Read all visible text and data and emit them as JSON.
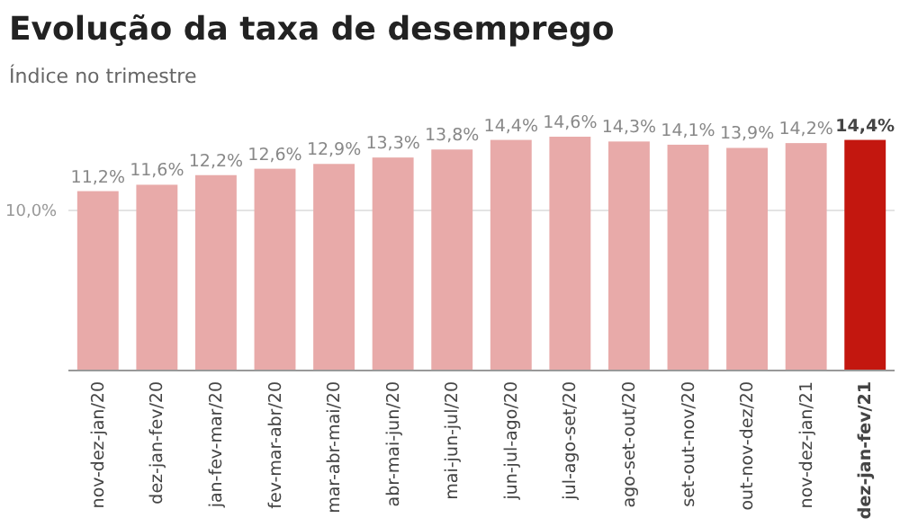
{
  "chart_data": {
    "type": "bar",
    "title": "Evolução da taxa de desemprego",
    "subtitle": "Índice no trimestre",
    "categories": [
      "nov-dez-jan/20",
      "dez-jan-fev/20",
      "jan-fev-mar/20",
      "fev-mar-abr/20",
      "mar-abr-mai/20",
      "abr-mai-jun/20",
      "mai-jun-jul/20",
      "jun-jul-ago/20",
      "jul-ago-set/20",
      "ago-set-out/20",
      "set-out-nov/20",
      "out-nov-dez/20",
      "nov-dez-jan/21",
      "dez-jan-fev/21"
    ],
    "values": [
      11.2,
      11.6,
      12.2,
      12.6,
      12.9,
      13.3,
      13.8,
      14.4,
      14.6,
      14.3,
      14.1,
      13.9,
      14.2,
      14.4
    ],
    "value_labels": [
      "11,2%",
      "11,6%",
      "12,2%",
      "12,6%",
      "12,9%",
      "13,3%",
      "13,8%",
      "14,4%",
      "14,6%",
      "14,3%",
      "14,1%",
      "13,9%",
      "14,2%",
      "14,4%"
    ],
    "colors": [
      "#e8aaa9",
      "#e8aaa9",
      "#e8aaa9",
      "#e8aaa9",
      "#e8aaa9",
      "#e8aaa9",
      "#e8aaa9",
      "#e8aaa9",
      "#e8aaa9",
      "#e8aaa9",
      "#e8aaa9",
      "#e8aaa9",
      "#e8aaa9",
      "#c3170f"
    ],
    "ylim": [
      0,
      14.6
    ],
    "yticks": [
      {
        "value": 10,
        "label": "10,0%"
      }
    ],
    "grid": "y"
  }
}
